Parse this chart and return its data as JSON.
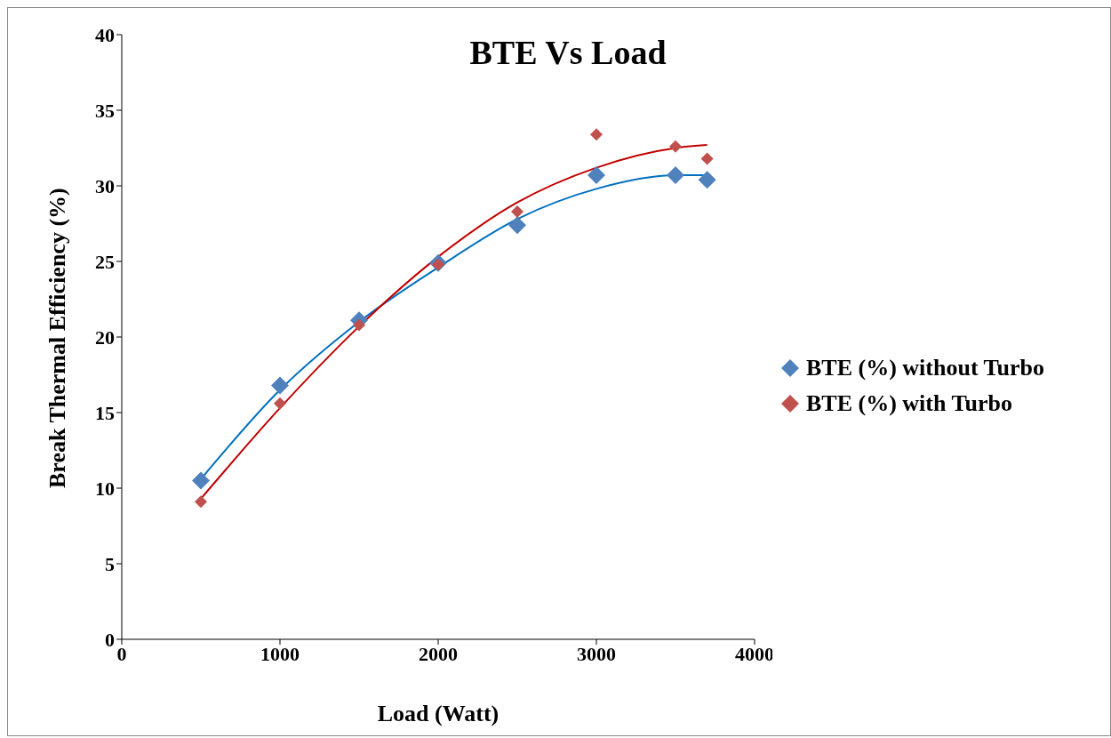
{
  "chart_data": {
    "type": "scatter",
    "title": "BTE Vs Load",
    "xlabel": "Load (Watt)",
    "ylabel": "Break Thermal Efficiency (%)",
    "xlim": [
      0,
      4000
    ],
    "xticks": [
      0,
      1000,
      2000,
      3000,
      4000
    ],
    "ylim": [
      0,
      40
    ],
    "yticks": [
      0,
      5,
      10,
      15,
      20,
      25,
      30,
      35,
      40
    ],
    "grid": false,
    "legend": "right",
    "marker": "diamond",
    "x": [
      500,
      1000,
      1500,
      2000,
      2500,
      3000,
      3500,
      3700
    ],
    "series": [
      {
        "name": "BTE (%) without Turbo",
        "color": "#4f81bd",
        "values": [
          10.5,
          16.8,
          21.1,
          24.9,
          27.4,
          30.7,
          30.7,
          30.4
        ]
      },
      {
        "name": "BTE (%) with Turbo",
        "color": "#c0504d",
        "values": [
          9.1,
          15.6,
          20.8,
          24.8,
          28.3,
          33.4,
          32.6,
          31.8
        ]
      },
      {
        "type": "line",
        "color": "#0070c0",
        "marker": "none",
        "x": [
          500,
          1000,
          1500,
          2000,
          2500,
          3000,
          3500,
          3700
        ],
        "values": [
          10.6,
          16.5,
          21.0,
          24.6,
          27.8,
          29.8,
          30.7,
          30.7
        ]
      },
      {
        "type": "line",
        "color": "#c00000",
        "marker": "none",
        "x": [
          500,
          1000,
          1500,
          2000,
          2500,
          3000,
          3500,
          3700
        ],
        "values": [
          9.3,
          15.3,
          20.7,
          25.3,
          28.9,
          31.2,
          32.5,
          32.7
        ]
      }
    ]
  }
}
